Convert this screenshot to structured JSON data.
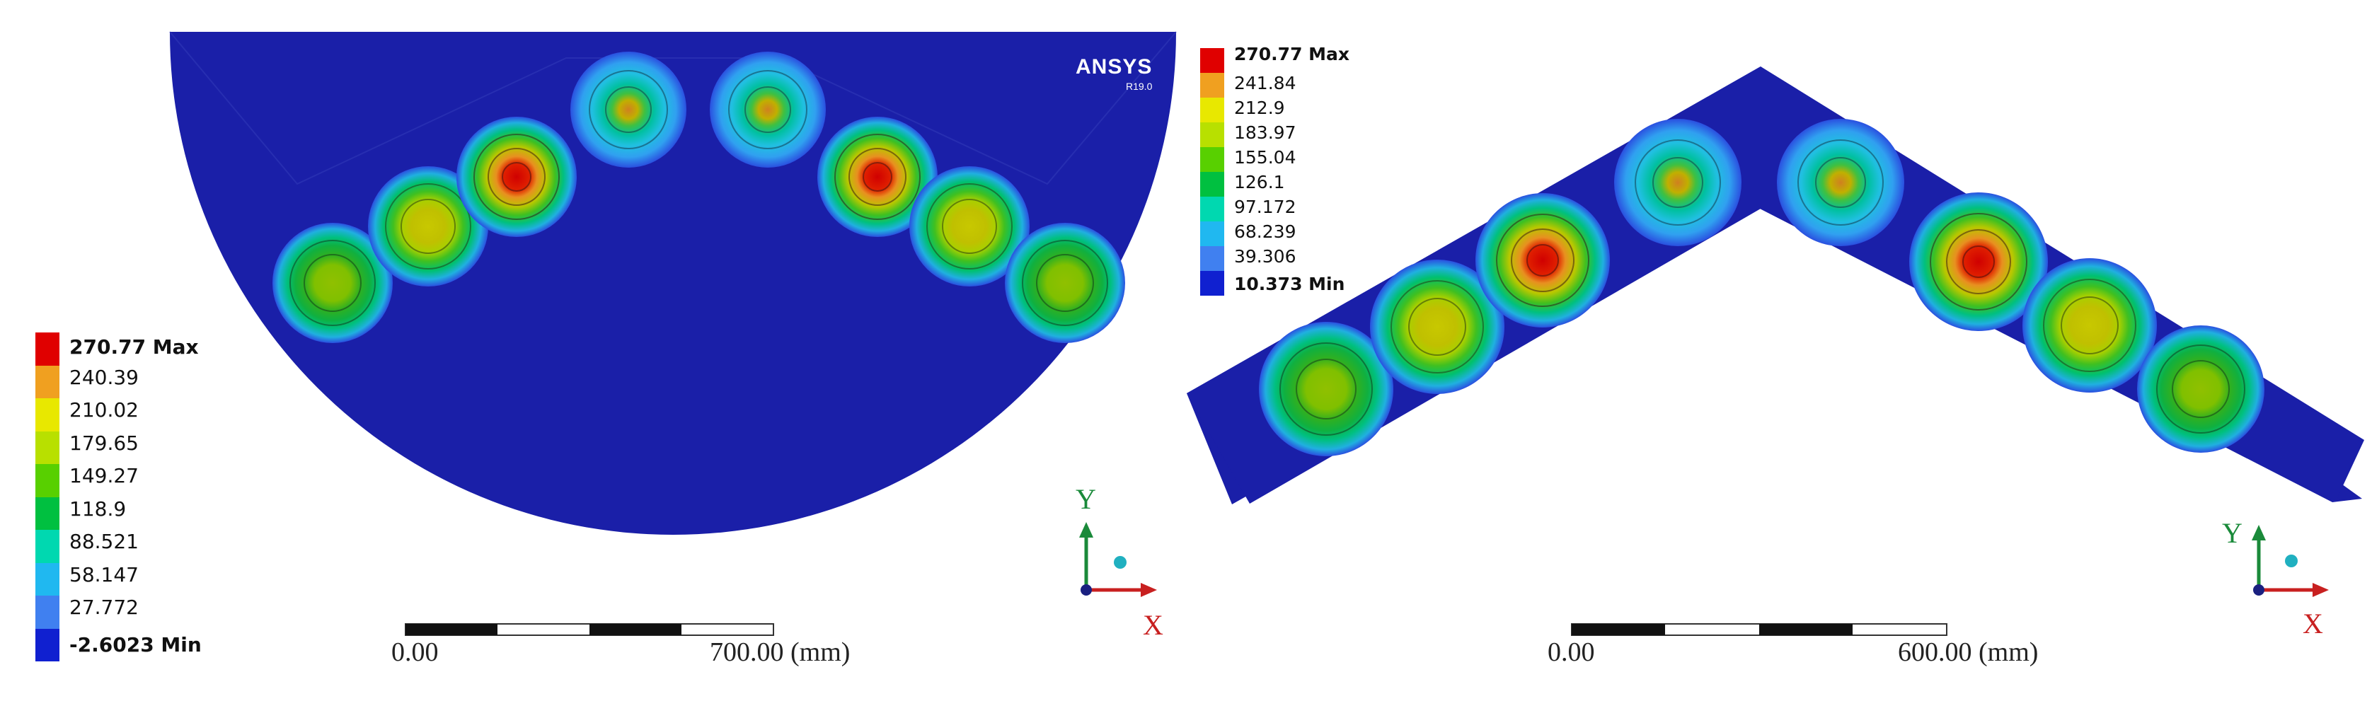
{
  "left_panel": {
    "brand": "ANSYS",
    "version": "R19.0",
    "legend": [
      {
        "label": "270.77 Max",
        "color": "#e00000",
        "bold": true
      },
      {
        "label": "240.39",
        "color": "#f0a020",
        "bold": false
      },
      {
        "label": "210.02",
        "color": "#e8e800",
        "bold": false
      },
      {
        "label": "179.65",
        "color": "#b8e000",
        "bold": false
      },
      {
        "label": "149.27",
        "color": "#58d000",
        "bold": false
      },
      {
        "label": "118.9",
        "color": "#00c040",
        "bold": false
      },
      {
        "label": "88.521",
        "color": "#00d8b0",
        "bold": false
      },
      {
        "label": "58.147",
        "color": "#20b8f0",
        "bold": false
      },
      {
        "label": "27.772",
        "color": "#4080f0",
        "bold": false
      },
      {
        "label": "-2.6023 Min",
        "color": "#1020d0",
        "bold": true
      }
    ],
    "scale": {
      "start": "0.00",
      "end": "700.00 (mm)"
    },
    "axes": {
      "x": "X",
      "y": "Y"
    }
  },
  "right_panel": {
    "legend": [
      {
        "label": "270.77 Max",
        "color": "#e00000",
        "bold": true
      },
      {
        "label": "241.84",
        "color": "#f0a020",
        "bold": false
      },
      {
        "label": "212.9",
        "color": "#e8e800",
        "bold": false
      },
      {
        "label": "183.97",
        "color": "#b8e000",
        "bold": false
      },
      {
        "label": "155.04",
        "color": "#58d000",
        "bold": false
      },
      {
        "label": "126.1",
        "color": "#00c040",
        "bold": false
      },
      {
        "label": "97.172",
        "color": "#00d8b0",
        "bold": false
      },
      {
        "label": "68.239",
        "color": "#20b8f0",
        "bold": false
      },
      {
        "label": "39.306",
        "color": "#4080f0",
        "bold": false
      },
      {
        "label": "10.373 Min",
        "color": "#1020d0",
        "bold": true
      }
    ],
    "scale": {
      "start": "0.00",
      "end": "600.00 (mm)"
    },
    "axes": {
      "x": "X",
      "y": "Y"
    }
  },
  "colors": {
    "background_field": "#1a1fa8",
    "axis_x": "#c82020",
    "axis_y": "#1a8a3a",
    "axis_z": "#20b0c0"
  }
}
